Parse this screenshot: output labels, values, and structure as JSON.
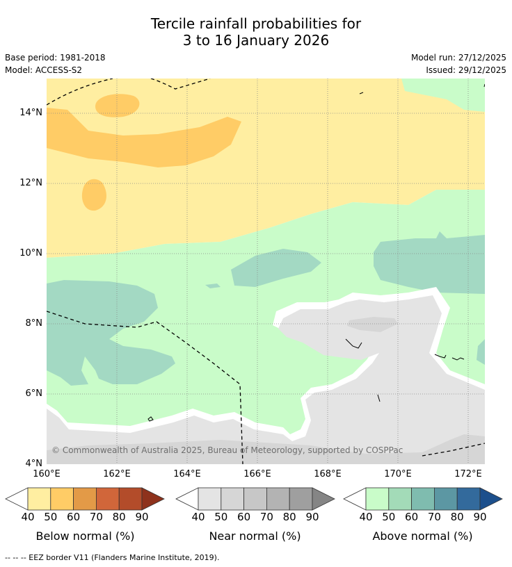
{
  "title_line1": "Tercile rainfall probabilities for",
  "title_line2": "3 to 16 January 2026",
  "base_period": "Base period: 1981-2018",
  "model": "Model: ACCESS-S2",
  "model_run": "Model run: 27/12/2025",
  "issued": "Issued: 29/12/2025",
  "copyright": "© Commonwealth of Australia 2025, Bureau of Meteorology, supported by COSPPac",
  "lat_labels": [
    "14°N",
    "12°N",
    "10°N",
    "8°N",
    "6°N",
    "4°N"
  ],
  "lon_labels": [
    "160°E",
    "162°E",
    "164°E",
    "166°E",
    "168°E",
    "170°E",
    "172°E"
  ],
  "colorbars": [
    {
      "title": "Below normal (%)",
      "ticks": [
        "40",
        "50",
        "60",
        "70",
        "80",
        "90"
      ],
      "colors": [
        "#ffeea1",
        "#ffcc66",
        "#e39a47",
        "#d1663a",
        "#b34c2a",
        "#8e321c"
      ]
    },
    {
      "title": "Near normal (%)",
      "ticks": [
        "40",
        "50",
        "60",
        "70",
        "80",
        "90"
      ],
      "colors": [
        "#e4e4e4",
        "#d6d6d6",
        "#c7c7c7",
        "#b3b3b3",
        "#9f9f9f",
        "#858585"
      ]
    },
    {
      "title": "Above normal (%)",
      "ticks": [
        "40",
        "50",
        "60",
        "70",
        "80",
        "90"
      ],
      "colors": [
        "#c9fcc9",
        "#a3dbb8",
        "#7fbcaf",
        "#5c97a3",
        "#336a9c",
        "#1c4f8c"
      ]
    }
  ],
  "footnote": "--  --  -- EEZ border V11 (Flanders Marine Institute, 2019)."
}
